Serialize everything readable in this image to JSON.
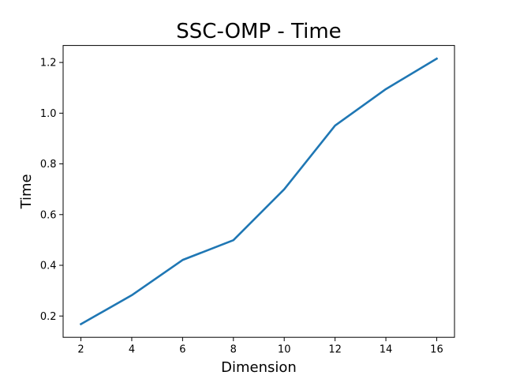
{
  "chart_data": {
    "type": "line",
    "title": "SSC-OMP - Time",
    "xlabel": "Dimension",
    "ylabel": "Time",
    "x": [
      2,
      4,
      6,
      8,
      10,
      12,
      14,
      16
    ],
    "series": [
      {
        "values": [
          0.168,
          0.282,
          0.421,
          0.499,
          0.7,
          0.951,
          1.095,
          1.215
        ],
        "color": "#1f77b4"
      }
    ],
    "xlim": [
      1.3,
      16.7
    ],
    "ylim": [
      0.116,
      1.267
    ],
    "xticks": [
      2,
      4,
      6,
      8,
      10,
      12,
      14,
      16
    ],
    "xtick_labels": [
      "2",
      "4",
      "6",
      "8",
      "10",
      "12",
      "14",
      "16"
    ],
    "yticks": [
      0.2,
      0.4,
      0.6,
      0.8,
      1.0,
      1.2
    ],
    "ytick_labels": [
      "0.2",
      "0.4",
      "0.6",
      "0.8",
      "1.0",
      "1.2"
    ],
    "grid": false,
    "legend": "none"
  }
}
